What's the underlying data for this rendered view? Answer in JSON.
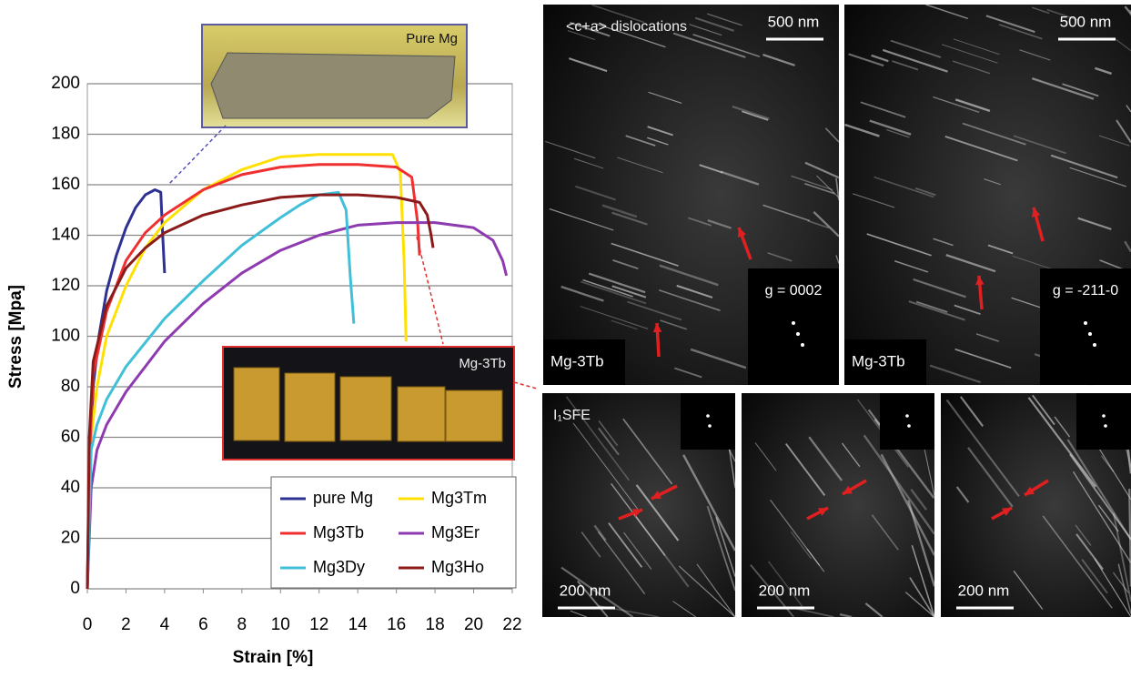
{
  "chart_data": {
    "type": "line",
    "x_label": "Strain [%]",
    "y_label": "Stress [Mpa]",
    "xlim": [
      0,
      22
    ],
    "xticks": [
      0,
      2,
      4,
      6,
      8,
      10,
      12,
      14,
      16,
      18,
      20,
      22
    ],
    "ylim": [
      0,
      200
    ],
    "yticks": [
      0,
      20,
      40,
      60,
      80,
      100,
      120,
      140,
      160,
      180,
      200
    ],
    "grid": true,
    "legend": "lower right",
    "annotations": [
      "Pure Mg",
      "Mg-3Tb"
    ],
    "series": [
      {
        "name": "pure Mg",
        "color": "#2e3192",
        "x": [
          0,
          0.1,
          0.3,
          0.6,
          1,
          1.5,
          2,
          2.5,
          3,
          3.5,
          3.8,
          3.9,
          4
        ],
        "values": [
          0,
          40,
          80,
          100,
          118,
          132,
          143,
          151,
          156,
          158,
          157,
          140,
          125
        ]
      },
      {
        "name": "Mg3Tm",
        "color": "#ffe000",
        "x": [
          0,
          0.2,
          0.5,
          1,
          2,
          3,
          4,
          6,
          8,
          10,
          12,
          14,
          15.8,
          16.2,
          16.4,
          16.5
        ],
        "values": [
          0,
          60,
          80,
          100,
          120,
          135,
          145,
          158,
          166,
          171,
          172,
          172,
          172,
          165,
          130,
          98
        ]
      },
      {
        "name": "Mg3Tb",
        "color": "#f03030",
        "x": [
          0,
          0.1,
          0.3,
          1,
          2,
          3,
          4,
          6,
          8,
          10,
          12,
          14,
          16,
          16.8,
          17.1,
          17.2
        ],
        "values": [
          0,
          50,
          85,
          110,
          130,
          141,
          148,
          158,
          164,
          167,
          168,
          168,
          167,
          163,
          145,
          132
        ]
      },
      {
        "name": "Mg3Er",
        "color": "#8e3ab0",
        "x": [
          0,
          0.2,
          0.5,
          1,
          2,
          4,
          6,
          8,
          10,
          12,
          14,
          16,
          18,
          20,
          21,
          21.5,
          21.7
        ],
        "values": [
          0,
          40,
          55,
          65,
          78,
          98,
          113,
          125,
          134,
          140,
          144,
          145,
          145,
          143,
          138,
          130,
          124
        ]
      },
      {
        "name": "Mg3Dy",
        "color": "#40c0d8",
        "x": [
          0,
          0.2,
          0.5,
          1,
          2,
          4,
          6,
          8,
          10,
          11,
          12,
          13,
          13.4,
          13.6,
          13.8
        ],
        "values": [
          0,
          55,
          65,
          75,
          88,
          107,
          122,
          136,
          147,
          152,
          156,
          157,
          150,
          125,
          105
        ]
      },
      {
        "name": "Mg3Ho",
        "color": "#8b1a1a",
        "x": [
          0,
          0.1,
          0.3,
          1,
          2,
          3,
          4,
          6,
          8,
          10,
          12,
          14,
          16,
          17.2,
          17.6,
          17.8,
          17.9
        ],
        "values": [
          0,
          60,
          90,
          112,
          127,
          135,
          141,
          148,
          152,
          155,
          156,
          156,
          155,
          153,
          148,
          140,
          135
        ]
      }
    ]
  },
  "panels": [
    {
      "caption": "<c+a> dislocations",
      "scale": "500 nm",
      "g": "g = 0002",
      "sample": "Mg-3Tb"
    },
    {
      "scale": "500 nm",
      "g": "g = -211-0",
      "sample": "Mg-3Tb"
    },
    {
      "caption": "I₁SFE",
      "scale": "200 nm"
    },
    {
      "scale": "200 nm"
    },
    {
      "scale": "200 nm"
    }
  ]
}
